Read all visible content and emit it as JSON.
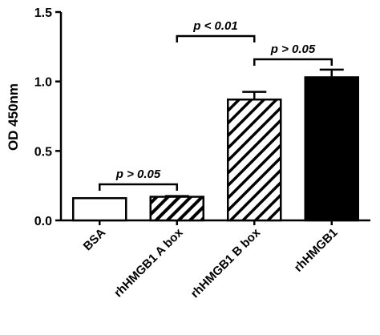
{
  "chart_data": {
    "type": "bar",
    "title": "",
    "xlabel": "",
    "ylabel": "OD 450nm",
    "ylim": [
      0,
      1.5
    ],
    "yticks": [
      "0.0",
      "0.5",
      "1.0",
      "1.5"
    ],
    "categories": [
      "BSA",
      "rhHMGB1 A box",
      "rhHMGB1 B box",
      "rhHMGB1"
    ],
    "values": [
      0.16,
      0.17,
      0.87,
      1.03
    ],
    "errors": [
      0.0,
      0.005,
      0.055,
      0.055
    ],
    "fills": [
      "white",
      "diagonal-hatch",
      "diagonal-hatch-dense",
      "black"
    ],
    "significance": [
      {
        "from": 0,
        "to": 1,
        "label": "p > 0.05"
      },
      {
        "from": 2,
        "to": 3,
        "label": "p > 0.05"
      },
      {
        "from": 1,
        "to": 2,
        "label": "p < 0.01"
      }
    ],
    "colors": {
      "bar_stroke": "#000000",
      "bar_solid": "#000000",
      "background": "#ffffff"
    }
  }
}
